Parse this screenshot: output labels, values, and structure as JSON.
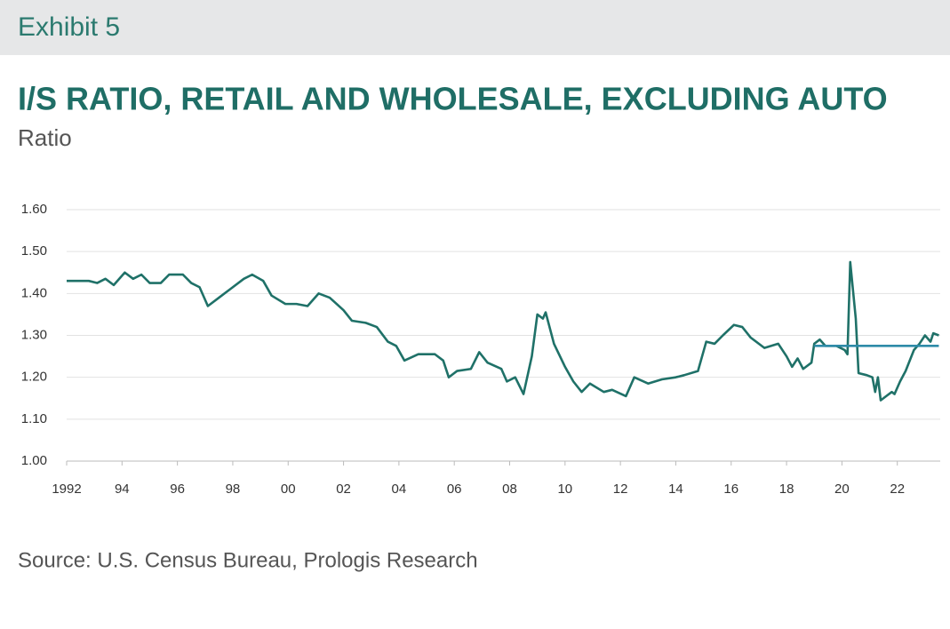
{
  "chart_data": {
    "type": "line",
    "exhibit": "Exhibit 5",
    "title": "I/S RATIO, RETAIL AND WHOLESALE, EXCLUDING AUTO",
    "subtitle": "Ratio",
    "source": "Source: U.S. Census Bureau, Prologis Research",
    "grid": true,
    "xlim": [
      1992,
      2023.55
    ],
    "ylim": [
      1.0,
      1.6
    ],
    "xticks": [
      1992,
      {
        "value": 1994,
        "label": "94"
      },
      {
        "value": 1996,
        "label": "96"
      },
      {
        "value": 1998,
        "label": "98"
      },
      {
        "value": 2000,
        "label": "00"
      },
      {
        "value": 2002,
        "label": "02"
      },
      {
        "value": 2004,
        "label": "04"
      },
      {
        "value": 2006,
        "label": "06"
      },
      {
        "value": 2008,
        "label": "08"
      },
      {
        "value": 2010,
        "label": "10"
      },
      {
        "value": 2012,
        "label": "12"
      },
      {
        "value": 2014,
        "label": "14"
      },
      {
        "value": 2016,
        "label": "16"
      },
      {
        "value": 2018,
        "label": "18"
      },
      {
        "value": 2020,
        "label": "20"
      },
      {
        "value": 2022,
        "label": "22"
      }
    ],
    "yticks": [
      {
        "value": 1.0,
        "label": "1.00"
      },
      {
        "value": 1.1,
        "label": "1.10"
      },
      {
        "value": 1.2,
        "label": "1.20"
      },
      {
        "value": 1.3,
        "label": "1.30"
      },
      {
        "value": 1.4,
        "label": "1.40"
      },
      {
        "value": 1.5,
        "label": "1.50"
      },
      {
        "value": 1.6,
        "label": "1.60"
      }
    ],
    "series": [
      {
        "color": "#1f7168",
        "x": [
          1992.0,
          1992.8,
          1993.1,
          1993.4,
          1993.7,
          1994.1,
          1994.4,
          1994.7,
          1995.0,
          1995.4,
          1995.7,
          1996.2,
          1996.5,
          1996.8,
          1997.1,
          1997.5,
          1997.9,
          1998.4,
          1998.7,
          1999.1,
          1999.4,
          1999.9,
          2000.3,
          2000.7,
          2001.1,
          2001.5,
          2002.0,
          2002.3,
          2002.8,
          2003.2,
          2003.6,
          2003.9,
          2004.2,
          2004.7,
          2005.3,
          2005.6,
          2005.8,
          2006.1,
          2006.6,
          2006.9,
          2007.2,
          2007.7,
          2007.9,
          2008.2,
          2008.5,
          2008.8,
          2009.0,
          2009.2,
          2009.3,
          2009.6,
          2010.0,
          2010.3,
          2010.6,
          2010.9,
          2011.4,
          2011.7,
          2012.2,
          2012.5,
          2013.0,
          2013.5,
          2014.0,
          2014.3,
          2014.8,
          2015.1,
          2015.4,
          2015.7,
          2016.1,
          2016.4,
          2016.7,
          2017.2,
          2017.7,
          2018.0,
          2018.2,
          2018.4,
          2018.6,
          2018.9,
          2019.0,
          2019.2,
          2019.4,
          2019.8,
          2020.1,
          2020.2,
          2020.3,
          2020.5,
          2020.6,
          2020.9,
          2021.1,
          2021.2,
          2021.3,
          2021.4,
          2021.6,
          2021.8,
          2021.9,
          2022.1,
          2022.3,
          2022.6,
          2022.8,
          2023.0,
          2023.2,
          2023.3,
          2023.5
        ],
        "values": [
          1.43,
          1.43,
          1.425,
          1.435,
          1.42,
          1.45,
          1.435,
          1.445,
          1.425,
          1.425,
          1.445,
          1.445,
          1.425,
          1.415,
          1.37,
          1.39,
          1.41,
          1.435,
          1.445,
          1.43,
          1.395,
          1.375,
          1.375,
          1.37,
          1.4,
          1.39,
          1.36,
          1.335,
          1.33,
          1.32,
          1.285,
          1.275,
          1.24,
          1.255,
          1.255,
          1.24,
          1.2,
          1.215,
          1.22,
          1.26,
          1.235,
          1.22,
          1.19,
          1.2,
          1.16,
          1.25,
          1.35,
          1.34,
          1.355,
          1.28,
          1.225,
          1.19,
          1.165,
          1.185,
          1.165,
          1.17,
          1.155,
          1.2,
          1.185,
          1.195,
          1.2,
          1.205,
          1.215,
          1.285,
          1.28,
          1.3,
          1.325,
          1.32,
          1.295,
          1.27,
          1.28,
          1.25,
          1.225,
          1.245,
          1.22,
          1.235,
          1.28,
          1.29,
          1.275,
          1.275,
          1.265,
          1.255,
          1.475,
          1.34,
          1.21,
          1.205,
          1.2,
          1.165,
          1.2,
          1.145,
          1.155,
          1.165,
          1.16,
          1.19,
          1.215,
          1.265,
          1.28,
          1.3,
          1.285,
          1.305,
          1.3
        ]
      },
      {
        "color": "#2e8ba8",
        "x": [
          2019.0,
          2023.5
        ],
        "values": [
          1.275,
          1.275
        ]
      }
    ]
  }
}
